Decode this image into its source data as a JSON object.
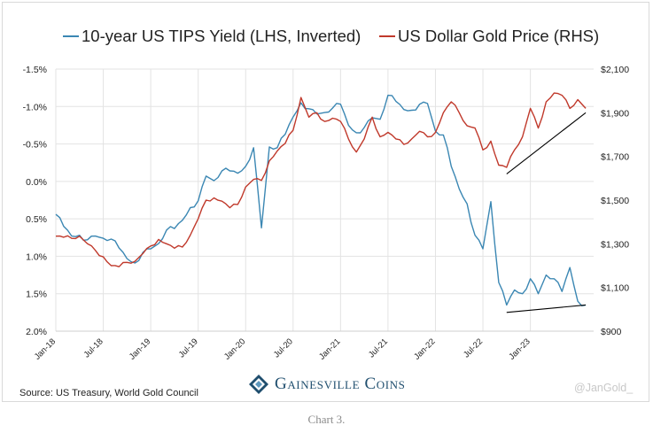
{
  "caption": "Chart 3.",
  "source_text": "Source: US Treasury, World Gold Council",
  "watermark": "@JanGold_",
  "brand": {
    "name": "Gainesville Coins",
    "logo_icon": "gainesville-coins-logo-icon"
  },
  "colors": {
    "tips": "#3b87b3",
    "gold": "#c0392b",
    "grid": "#e3e3e3",
    "trend": "#000000",
    "brand": "#1f4e6e"
  },
  "chart_data": {
    "type": "line",
    "title": "",
    "legend_position": "top",
    "grid": true,
    "series": [
      {
        "name": "10-year US TIPS Yield (LHS, Inverted)",
        "axis": "left",
        "x": [
          "2018-01",
          "2018-02",
          "2018-03",
          "2018-04",
          "2018-05",
          "2018-06",
          "2018-07",
          "2018-08",
          "2018-09",
          "2018-10",
          "2018-11",
          "2018-12",
          "2019-01",
          "2019-02",
          "2019-03",
          "2019-04",
          "2019-05",
          "2019-06",
          "2019-07",
          "2019-08",
          "2019-09",
          "2019-10",
          "2019-11",
          "2019-12",
          "2020-01",
          "2020-02",
          "2020-03",
          "2020-04",
          "2020-05",
          "2020-06",
          "2020-07",
          "2020-08",
          "2020-09",
          "2020-10",
          "2020-11",
          "2020-12",
          "2021-01",
          "2021-02",
          "2021-03",
          "2021-04",
          "2021-05",
          "2021-06",
          "2021-07",
          "2021-08",
          "2021-09",
          "2021-10",
          "2021-11",
          "2021-12",
          "2022-01",
          "2022-02",
          "2022-03",
          "2022-04",
          "2022-05",
          "2022-06",
          "2022-07",
          "2022-08",
          "2022-09",
          "2022-10",
          "2022-11",
          "2022-12",
          "2023-01",
          "2023-02",
          "2023-03",
          "2023-04",
          "2023-05",
          "2023-06",
          "2023-07",
          "2023-08"
        ],
        "y": [
          0.44,
          0.6,
          0.73,
          0.72,
          0.78,
          0.73,
          0.76,
          0.77,
          0.89,
          1.03,
          1.09,
          0.95,
          0.9,
          0.83,
          0.65,
          0.63,
          0.52,
          0.35,
          0.26,
          -0.07,
          -0.01,
          -0.14,
          -0.14,
          -0.11,
          -0.2,
          -0.45,
          0.62,
          -0.46,
          -0.45,
          -0.63,
          -0.86,
          -1.05,
          -0.97,
          -0.9,
          -0.92,
          -0.98,
          -1.03,
          -0.75,
          -0.65,
          -0.72,
          -0.85,
          -0.83,
          -1.15,
          -1.07,
          -0.96,
          -0.95,
          -1.03,
          -1.04,
          -0.67,
          -0.62,
          -0.2,
          0.1,
          0.3,
          0.72,
          0.9,
          0.27,
          1.35,
          1.65,
          1.45,
          1.5,
          1.3,
          1.5,
          1.25,
          1.3,
          1.47,
          1.15,
          1.6,
          1.65
        ]
      },
      {
        "name": "US Dollar Gold Price (RHS)",
        "axis": "right",
        "x": [
          "2018-01",
          "2018-02",
          "2018-03",
          "2018-04",
          "2018-05",
          "2018-06",
          "2018-07",
          "2018-08",
          "2018-09",
          "2018-10",
          "2018-11",
          "2018-12",
          "2019-01",
          "2019-02",
          "2019-03",
          "2019-04",
          "2019-05",
          "2019-06",
          "2019-07",
          "2019-08",
          "2019-09",
          "2019-10",
          "2019-11",
          "2019-12",
          "2020-01",
          "2020-02",
          "2020-03",
          "2020-04",
          "2020-05",
          "2020-06",
          "2020-07",
          "2020-08",
          "2020-09",
          "2020-10",
          "2020-11",
          "2020-12",
          "2021-01",
          "2021-02",
          "2021-03",
          "2021-04",
          "2021-05",
          "2021-06",
          "2021-07",
          "2021-08",
          "2021-09",
          "2021-10",
          "2021-11",
          "2021-12",
          "2022-01",
          "2022-02",
          "2022-03",
          "2022-04",
          "2022-05",
          "2022-06",
          "2022-07",
          "2022-08",
          "2022-09",
          "2022-10",
          "2022-11",
          "2022-12",
          "2023-01",
          "2023-02",
          "2023-03",
          "2023-04",
          "2023-05",
          "2023-06",
          "2023-07",
          "2023-08"
        ],
        "y": [
          1335,
          1330,
          1325,
          1335,
          1300,
          1270,
          1240,
          1200,
          1195,
          1215,
          1220,
          1255,
          1290,
          1320,
          1300,
          1280,
          1285,
          1340,
          1415,
          1500,
          1510,
          1495,
          1465,
          1480,
          1560,
          1595,
          1590,
          1680,
          1725,
          1760,
          1820,
          1970,
          1880,
          1900,
          1860,
          1875,
          1860,
          1780,
          1720,
          1780,
          1880,
          1790,
          1810,
          1780,
          1755,
          1780,
          1815,
          1790,
          1810,
          1900,
          1950,
          1900,
          1840,
          1830,
          1730,
          1770,
          1660,
          1650,
          1730,
          1790,
          1920,
          1830,
          1950,
          1990,
          1980,
          1920,
          1960,
          1920
        ]
      }
    ],
    "y_left": {
      "ticks": [
        "-1.5%",
        "-1.0%",
        "-0.5%",
        "0.0%",
        "0.5%",
        "1.0%",
        "1.5%",
        "2.0%"
      ],
      "range": [
        -1.5,
        2.0
      ],
      "inverted": true
    },
    "y_right": {
      "ticks": [
        "$2,100",
        "$1,900",
        "$1,700",
        "$1,500",
        "$1,300",
        "$1,100",
        "$900"
      ],
      "range": [
        900,
        2100
      ]
    },
    "x_ticks": [
      "Jan-18",
      "Jul-18",
      "Jan-19",
      "Jul-19",
      "Jan-20",
      "Jul-20",
      "Jan-21",
      "Jul-21",
      "Jan-22",
      "Jul-22",
      "Jan-23"
    ],
    "annotations": [
      {
        "type": "trend-line",
        "axis": "right",
        "from": {
          "x": "2022-10",
          "y": 1620
        },
        "to": {
          "x": "2023-08",
          "y": 1900
        }
      },
      {
        "type": "trend-line",
        "axis": "left",
        "from": {
          "x": "2022-10",
          "y": 1.75
        },
        "to": {
          "x": "2023-08",
          "y": 1.65
        }
      }
    ]
  }
}
